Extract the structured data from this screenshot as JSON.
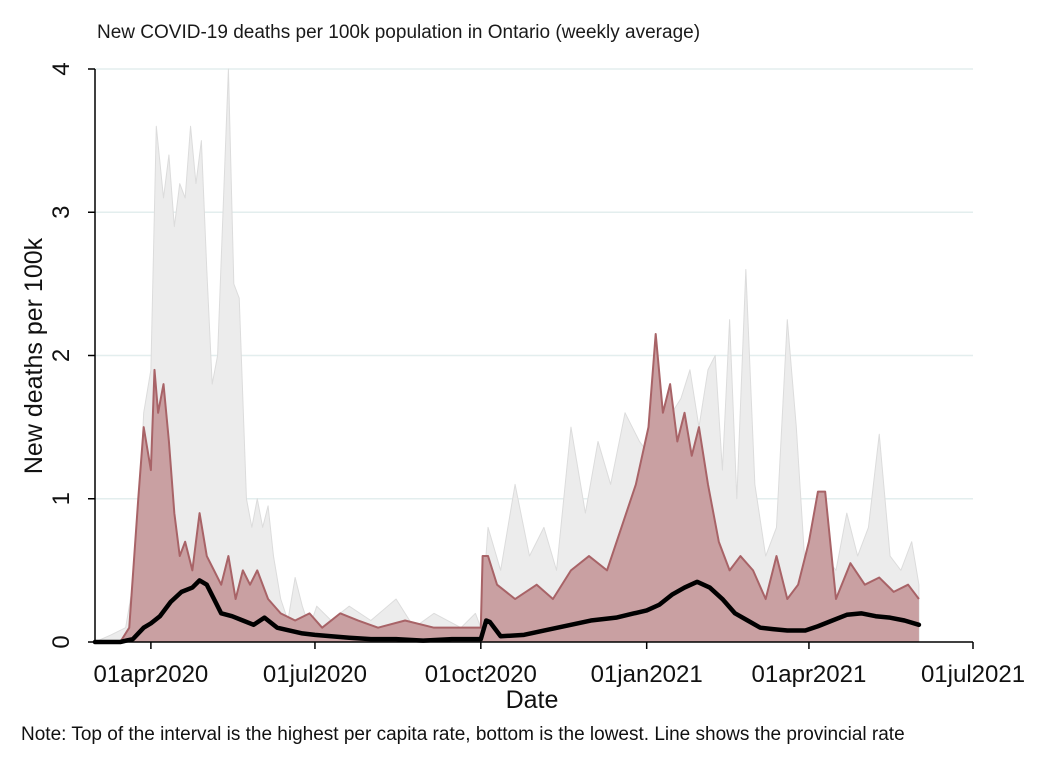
{
  "chart_data": {
    "type": "area",
    "title": "New COVID-19 deaths per 100k population in Ontario (weekly average)",
    "xlabel": "Date",
    "ylabel": "New deaths per 100k",
    "note": "Note: Top of the interval is the highest per capita rate, bottom is the lowest. Line shows the provincial rate",
    "ylim": [
      0,
      4
    ],
    "yticks": [
      0,
      1,
      2,
      3,
      4
    ],
    "xlim": [
      "2020-03-01",
      "2021-07-01"
    ],
    "xticks": [
      {
        "date": "2020-04-01",
        "label": "01apr2020"
      },
      {
        "date": "2020-07-01",
        "label": "01jul2020"
      },
      {
        "date": "2020-10-01",
        "label": "01oct2020"
      },
      {
        "date": "2021-01-01",
        "label": "01jan2021"
      },
      {
        "date": "2021-04-01",
        "label": "01apr2021"
      },
      {
        "date": "2021-07-01",
        "label": "01jul2021"
      }
    ],
    "grid": true,
    "colors": {
      "max_range": "#ececec",
      "max_range_edge": "#dcdcdc",
      "interval_fill": "#c9a0a2",
      "interval_edge": "#a86367",
      "provincial_line": "#000000",
      "grid": "#e3eeee"
    },
    "series": [
      {
        "role": "grey-upper",
        "x": [
          "2020-03-01",
          "2020-03-10",
          "2020-03-18",
          "2020-03-22",
          "2020-03-25",
          "2020-03-28",
          "2020-04-01",
          "2020-04-04",
          "2020-04-08",
          "2020-04-11",
          "2020-04-14",
          "2020-04-17",
          "2020-04-20",
          "2020-04-23",
          "2020-04-26",
          "2020-04-29",
          "2020-05-02",
          "2020-05-05",
          "2020-05-08",
          "2020-05-11",
          "2020-05-14",
          "2020-05-17",
          "2020-05-20",
          "2020-05-24",
          "2020-05-27",
          "2020-05-30",
          "2020-06-02",
          "2020-06-05",
          "2020-06-08",
          "2020-06-12",
          "2020-06-16",
          "2020-06-20",
          "2020-06-24",
          "2020-06-28",
          "2020-07-02",
          "2020-07-10",
          "2020-07-20",
          "2020-08-01",
          "2020-08-15",
          "2020-08-25",
          "2020-09-05",
          "2020-09-20",
          "2020-09-28",
          "2020-10-01",
          "2020-10-05",
          "2020-10-12",
          "2020-10-20",
          "2020-10-28",
          "2020-11-05",
          "2020-11-12",
          "2020-11-20",
          "2020-11-28",
          "2020-12-05",
          "2020-12-12",
          "2020-12-20",
          "2020-12-28",
          "2021-01-03",
          "2021-01-10",
          "2021-01-15",
          "2021-01-20",
          "2021-01-25",
          "2021-01-30",
          "2021-02-04",
          "2021-02-08",
          "2021-02-12",
          "2021-02-16",
          "2021-02-20",
          "2021-02-25",
          "2021-03-02",
          "2021-03-08",
          "2021-03-14",
          "2021-03-20",
          "2021-03-25",
          "2021-03-30",
          "2021-04-04",
          "2021-04-10",
          "2021-04-16",
          "2021-04-22",
          "2021-04-28",
          "2021-05-04",
          "2021-05-10",
          "2021-05-16",
          "2021-05-22",
          "2021-05-28",
          "2021-06-01"
        ],
        "values": [
          0.0,
          0.05,
          0.1,
          0.4,
          0.8,
          1.6,
          1.9,
          3.6,
          3.1,
          3.4,
          2.9,
          3.2,
          3.1,
          3.6,
          3.2,
          3.5,
          2.6,
          1.8,
          2.0,
          3.0,
          4.0,
          2.5,
          2.4,
          1.0,
          0.8,
          1.0,
          0.8,
          0.95,
          0.6,
          0.3,
          0.15,
          0.45,
          0.25,
          0.1,
          0.25,
          0.15,
          0.25,
          0.15,
          0.3,
          0.1,
          0.2,
          0.1,
          0.2,
          0.1,
          0.8,
          0.5,
          1.1,
          0.6,
          0.8,
          0.5,
          1.5,
          0.9,
          1.4,
          1.1,
          1.6,
          1.4,
          1.3,
          1.4,
          1.6,
          1.7,
          1.9,
          1.5,
          1.9,
          2.0,
          1.2,
          2.25,
          1.0,
          2.6,
          1.1,
          0.6,
          0.8,
          2.25,
          1.5,
          0.5,
          0.9,
          0.6,
          0.5,
          0.9,
          0.6,
          0.8,
          1.45,
          0.6,
          0.5,
          0.7,
          0.4
        ]
      },
      {
        "role": "interval-upper",
        "x": [
          "2020-03-01",
          "2020-03-15",
          "2020-03-20",
          "2020-03-25",
          "2020-03-28",
          "2020-04-01",
          "2020-04-03",
          "2020-04-05",
          "2020-04-08",
          "2020-04-11",
          "2020-04-14",
          "2020-04-17",
          "2020-04-20",
          "2020-04-24",
          "2020-04-28",
          "2020-05-02",
          "2020-05-06",
          "2020-05-10",
          "2020-05-14",
          "2020-05-18",
          "2020-05-22",
          "2020-05-26",
          "2020-05-30",
          "2020-06-05",
          "2020-06-12",
          "2020-06-20",
          "2020-06-28",
          "2020-07-05",
          "2020-07-15",
          "2020-07-25",
          "2020-08-05",
          "2020-08-20",
          "2020-09-05",
          "2020-09-25",
          "2020-10-01",
          "2020-10-02",
          "2020-10-05",
          "2020-10-10",
          "2020-10-20",
          "2020-11-01",
          "2020-11-10",
          "2020-11-20",
          "2020-11-30",
          "2020-12-10",
          "2020-12-18",
          "2020-12-26",
          "2021-01-02",
          "2021-01-06",
          "2021-01-10",
          "2021-01-14",
          "2021-01-18",
          "2021-01-22",
          "2021-01-26",
          "2021-01-30",
          "2021-02-04",
          "2021-02-10",
          "2021-02-16",
          "2021-02-22",
          "2021-03-01",
          "2021-03-08",
          "2021-03-14",
          "2021-03-20",
          "2021-03-26",
          "2021-04-01",
          "2021-04-06",
          "2021-04-10",
          "2021-04-16",
          "2021-04-24",
          "2021-05-02",
          "2021-05-10",
          "2021-05-18",
          "2021-05-26",
          "2021-06-01"
        ],
        "values": [
          0.0,
          0.0,
          0.1,
          1.0,
          1.5,
          1.2,
          1.9,
          1.6,
          1.8,
          1.4,
          0.9,
          0.6,
          0.7,
          0.5,
          0.9,
          0.6,
          0.5,
          0.4,
          0.6,
          0.3,
          0.5,
          0.4,
          0.5,
          0.3,
          0.2,
          0.15,
          0.2,
          0.1,
          0.2,
          0.15,
          0.1,
          0.15,
          0.1,
          0.1,
          0.1,
          0.6,
          0.6,
          0.4,
          0.3,
          0.4,
          0.3,
          0.5,
          0.6,
          0.5,
          0.8,
          1.1,
          1.5,
          2.15,
          1.6,
          1.8,
          1.4,
          1.6,
          1.3,
          1.5,
          1.1,
          0.7,
          0.5,
          0.6,
          0.5,
          0.3,
          0.6,
          0.3,
          0.4,
          0.7,
          1.05,
          1.05,
          0.3,
          0.55,
          0.4,
          0.45,
          0.35,
          0.4,
          0.3
        ]
      },
      {
        "name": "Provincial rate",
        "role": "provincial-line",
        "x": [
          "2020-03-01",
          "2020-03-15",
          "2020-03-22",
          "2020-03-28",
          "2020-04-01",
          "2020-04-06",
          "2020-04-12",
          "2020-04-18",
          "2020-04-24",
          "2020-04-28",
          "2020-05-02",
          "2020-05-06",
          "2020-05-10",
          "2020-05-16",
          "2020-05-22",
          "2020-05-28",
          "2020-06-03",
          "2020-06-10",
          "2020-06-17",
          "2020-06-24",
          "2020-07-01",
          "2020-07-10",
          "2020-07-20",
          "2020-08-01",
          "2020-08-15",
          "2020-08-30",
          "2020-09-15",
          "2020-09-28",
          "2020-10-01",
          "2020-10-04",
          "2020-10-06",
          "2020-10-12",
          "2020-10-25",
          "2020-11-05",
          "2020-11-20",
          "2020-12-01",
          "2020-12-15",
          "2020-12-25",
          "2021-01-01",
          "2021-01-08",
          "2021-01-15",
          "2021-01-22",
          "2021-01-29",
          "2021-02-05",
          "2021-02-12",
          "2021-02-19",
          "2021-02-26",
          "2021-03-05",
          "2021-03-12",
          "2021-03-20",
          "2021-03-30",
          "2021-04-06",
          "2021-04-14",
          "2021-04-22",
          "2021-04-30",
          "2021-05-08",
          "2021-05-16",
          "2021-05-24",
          "2021-06-01"
        ],
        "values": [
          0.0,
          0.0,
          0.02,
          0.1,
          0.13,
          0.18,
          0.28,
          0.35,
          0.38,
          0.43,
          0.4,
          0.3,
          0.2,
          0.18,
          0.15,
          0.12,
          0.17,
          0.1,
          0.08,
          0.06,
          0.05,
          0.04,
          0.03,
          0.02,
          0.02,
          0.01,
          0.02,
          0.02,
          0.02,
          0.15,
          0.14,
          0.04,
          0.05,
          0.08,
          0.12,
          0.15,
          0.17,
          0.2,
          0.22,
          0.26,
          0.33,
          0.38,
          0.42,
          0.38,
          0.3,
          0.2,
          0.15,
          0.1,
          0.09,
          0.08,
          0.08,
          0.11,
          0.15,
          0.19,
          0.2,
          0.18,
          0.17,
          0.15,
          0.12
        ]
      }
    ]
  }
}
